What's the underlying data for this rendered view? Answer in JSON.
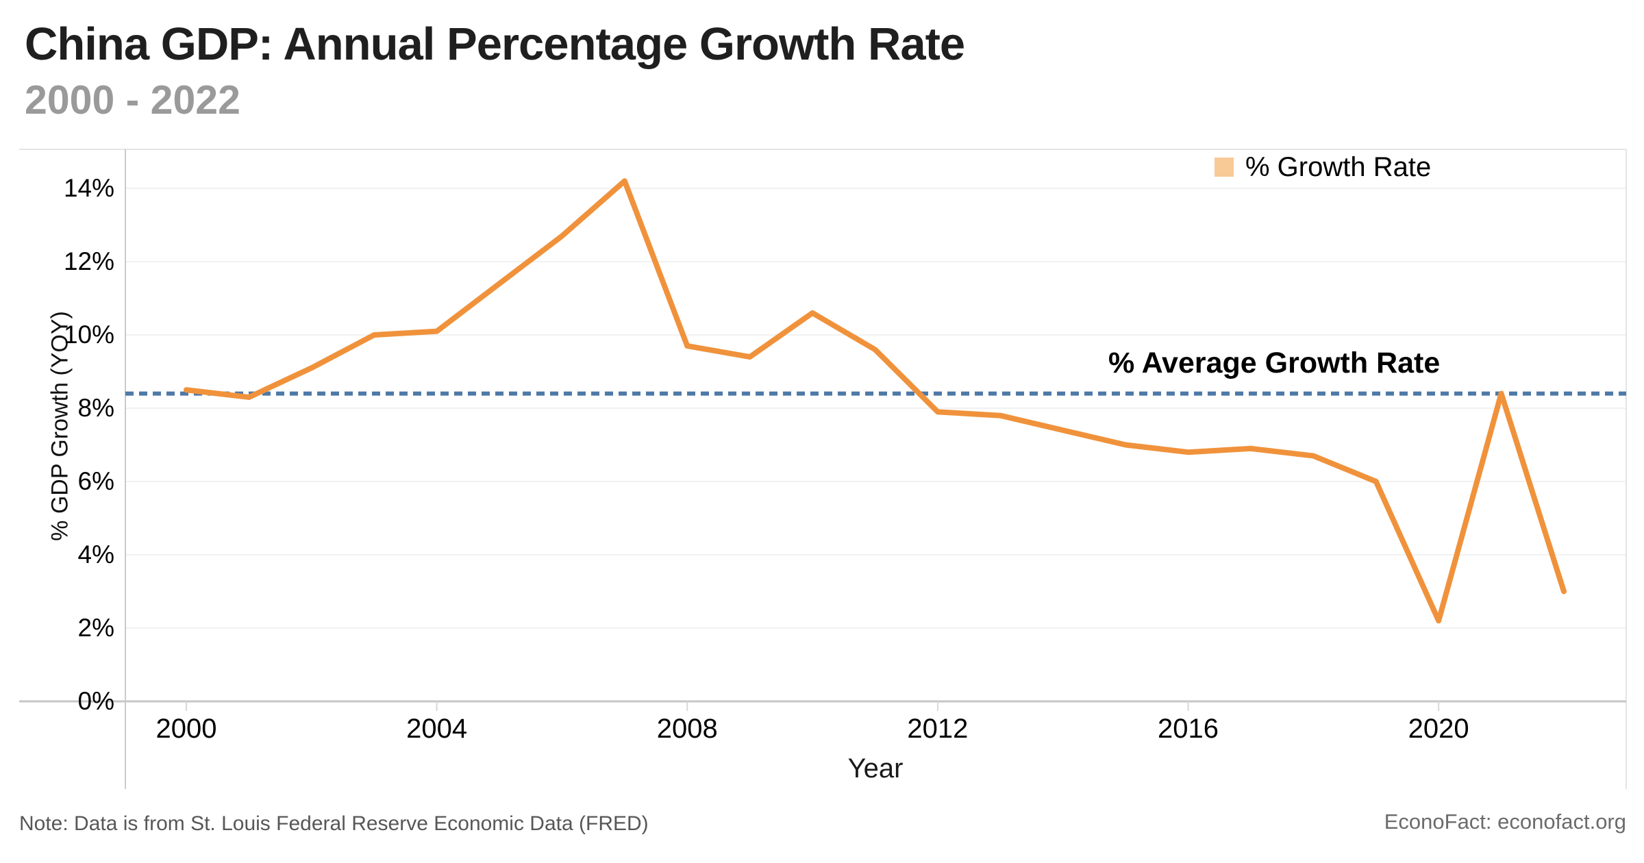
{
  "header": {
    "title": "China GDP: Annual Percentage Growth Rate",
    "subtitle": "2000 - 2022"
  },
  "legend": {
    "label": "% Growth Rate",
    "swatch_color": "#F8CA96"
  },
  "average_annotation": {
    "label": "% Average Growth Rate"
  },
  "axis": {
    "x_label": "Year",
    "y_label": "% GDP Growth (YOY)"
  },
  "footer": {
    "note": "Note: Data is from St. Louis Federal Reserve Economic Data (FRED)",
    "source": "EconoFact: econofact.org"
  },
  "chart_data": {
    "type": "line",
    "title": "China GDP: Annual Percentage Growth Rate",
    "subtitle": "2000 - 2022",
    "xlabel": "Year",
    "ylabel": "% GDP Growth (YOY)",
    "x": [
      2000,
      2001,
      2002,
      2003,
      2004,
      2005,
      2006,
      2007,
      2008,
      2009,
      2010,
      2011,
      2012,
      2013,
      2014,
      2015,
      2016,
      2017,
      2018,
      2019,
      2020,
      2021,
      2022
    ],
    "series": [
      {
        "name": "% Growth Rate",
        "color": "#F0923B",
        "values": [
          8.5,
          8.3,
          9.1,
          10.0,
          10.1,
          11.4,
          12.7,
          14.2,
          9.7,
          9.4,
          10.6,
          9.6,
          7.9,
          7.8,
          7.4,
          7.0,
          6.8,
          6.9,
          6.7,
          6.0,
          2.2,
          8.4,
          3.0
        ]
      }
    ],
    "average_line": {
      "label": "% Average Growth Rate",
      "value": 8.4,
      "color": "#4E79A7",
      "style": "dashed"
    },
    "ylim": [
      0,
      15
    ],
    "yticks": [
      0,
      2,
      4,
      6,
      8,
      10,
      12,
      14
    ],
    "ytick_suffix": "%",
    "xticks": [
      2000,
      2004,
      2008,
      2012,
      2016,
      2020
    ],
    "grid": "horizontal",
    "legend_position": "top-right"
  }
}
